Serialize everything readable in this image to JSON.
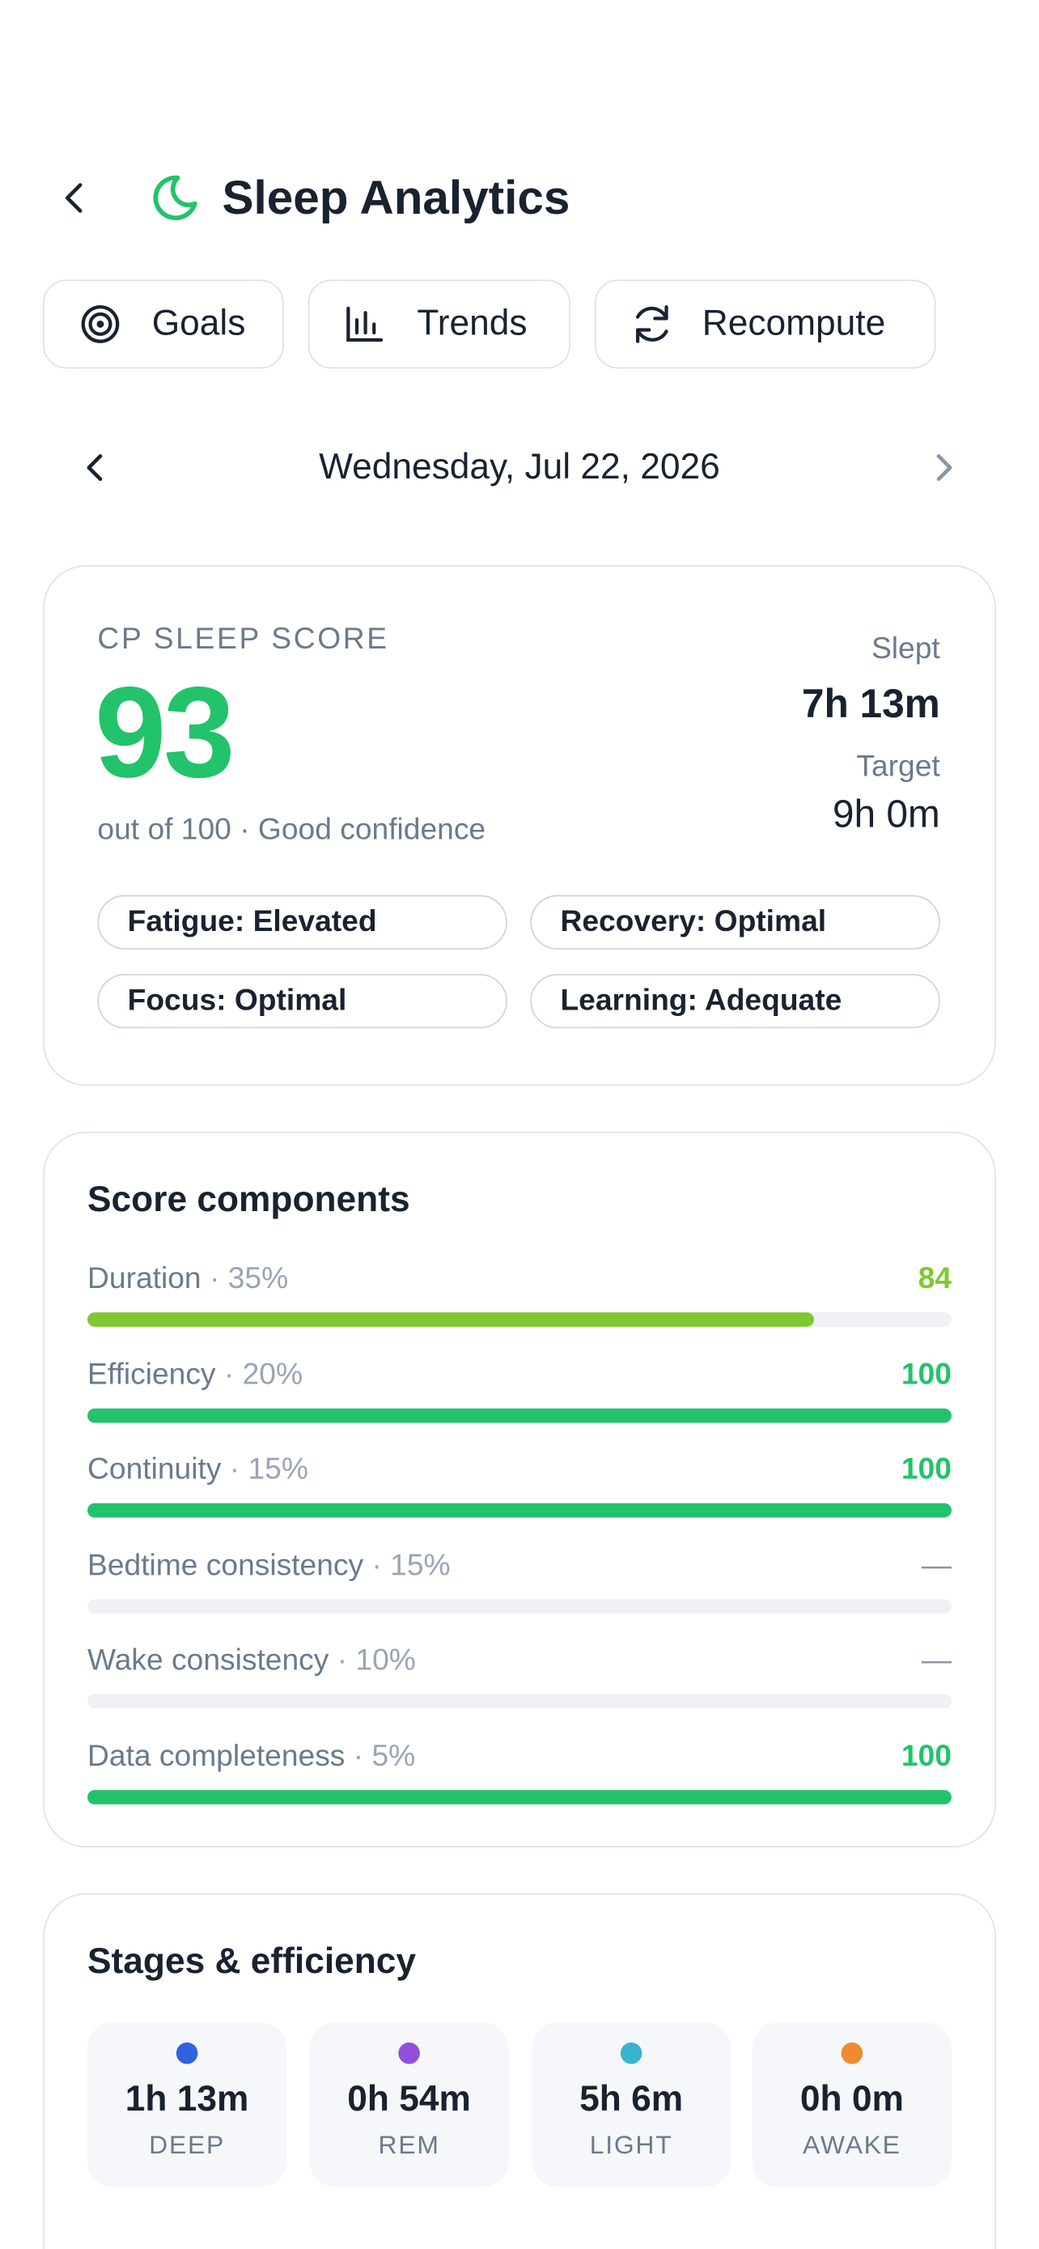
{
  "header": {
    "title": "Sleep Analytics"
  },
  "buttons": [
    "Goals",
    "Trends",
    "Recompute"
  ],
  "date": "Wednesday, Jul 22, 2026",
  "score_card": {
    "label": "CP SLEEP SCORE",
    "score": "93",
    "subtitle": "out of 100 · Good confidence",
    "slept_label": "Slept",
    "slept": "7h 13m",
    "target_label": "Target",
    "target": "9h 0m",
    "chips": [
      "Fatigue: Elevated",
      "Recovery: Optimal",
      "Focus: Optimal",
      "Learning: Adequate"
    ]
  },
  "components": {
    "title": "Score components",
    "max": 100,
    "items": [
      {
        "name": "Duration",
        "weight": "· 35%",
        "value": 84,
        "color": "#7ec832"
      },
      {
        "name": "Efficiency",
        "weight": "· 20%",
        "value": 100,
        "color": "#22c36b"
      },
      {
        "name": "Continuity",
        "weight": "· 15%",
        "value": 100,
        "color": "#22c36b"
      },
      {
        "name": "Bedtime consistency",
        "weight": "· 15%",
        "value": null,
        "value_label": "—",
        "color": "#8a94a3"
      },
      {
        "name": "Wake consistency",
        "weight": "· 10%",
        "value": null,
        "value_label": "—",
        "color": "#8a94a3"
      },
      {
        "name": "Data completeness",
        "weight": "· 5%",
        "value": 100,
        "color": "#22c36b"
      }
    ]
  },
  "stages": {
    "title": "Stages & efficiency",
    "items": [
      {
        "value": "1h 13m",
        "label": "DEEP",
        "color": "#2f62e0"
      },
      {
        "value": "0h 54m",
        "label": "REM",
        "color": "#9150dc"
      },
      {
        "value": "5h 6m",
        "label": "LIGHT",
        "color": "#3ab3cf"
      },
      {
        "value": "0h 0m",
        "label": "AWAKE",
        "color": "#ee8a2f"
      }
    ]
  }
}
